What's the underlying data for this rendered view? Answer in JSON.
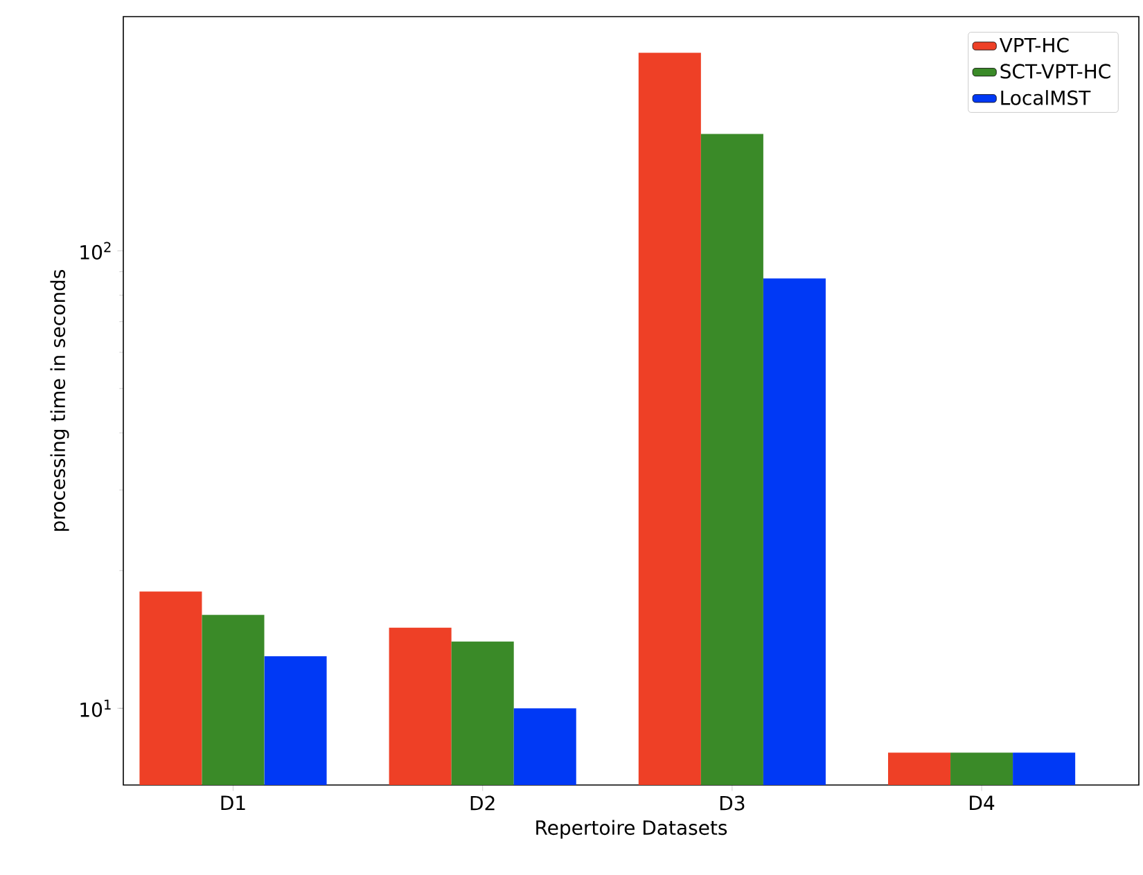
{
  "chart_data": {
    "type": "bar",
    "xlabel": "Repertoire Datasets",
    "ylabel": "processing time in seconds",
    "categories": [
      "D1",
      "D2",
      "D3",
      "D4"
    ],
    "series": [
      {
        "name": "VPT-HC",
        "color": "#ee4026",
        "values": [
          18,
          15,
          271,
          8
        ]
      },
      {
        "name": "SCT-VPT-HC",
        "color": "#3a8a28",
        "values": [
          16,
          14,
          180,
          8
        ]
      },
      {
        "name": "LocalMST",
        "color": "#0039f5",
        "values": [
          13,
          10,
          87,
          8
        ]
      }
    ],
    "log": "y",
    "ylim": [
      6.8,
      325
    ],
    "yticks": [
      {
        "value": 10,
        "label": "10$^{1}$"
      },
      {
        "value": 100,
        "label": "10$^{2}$"
      }
    ],
    "grid": false,
    "legend": "top right"
  }
}
